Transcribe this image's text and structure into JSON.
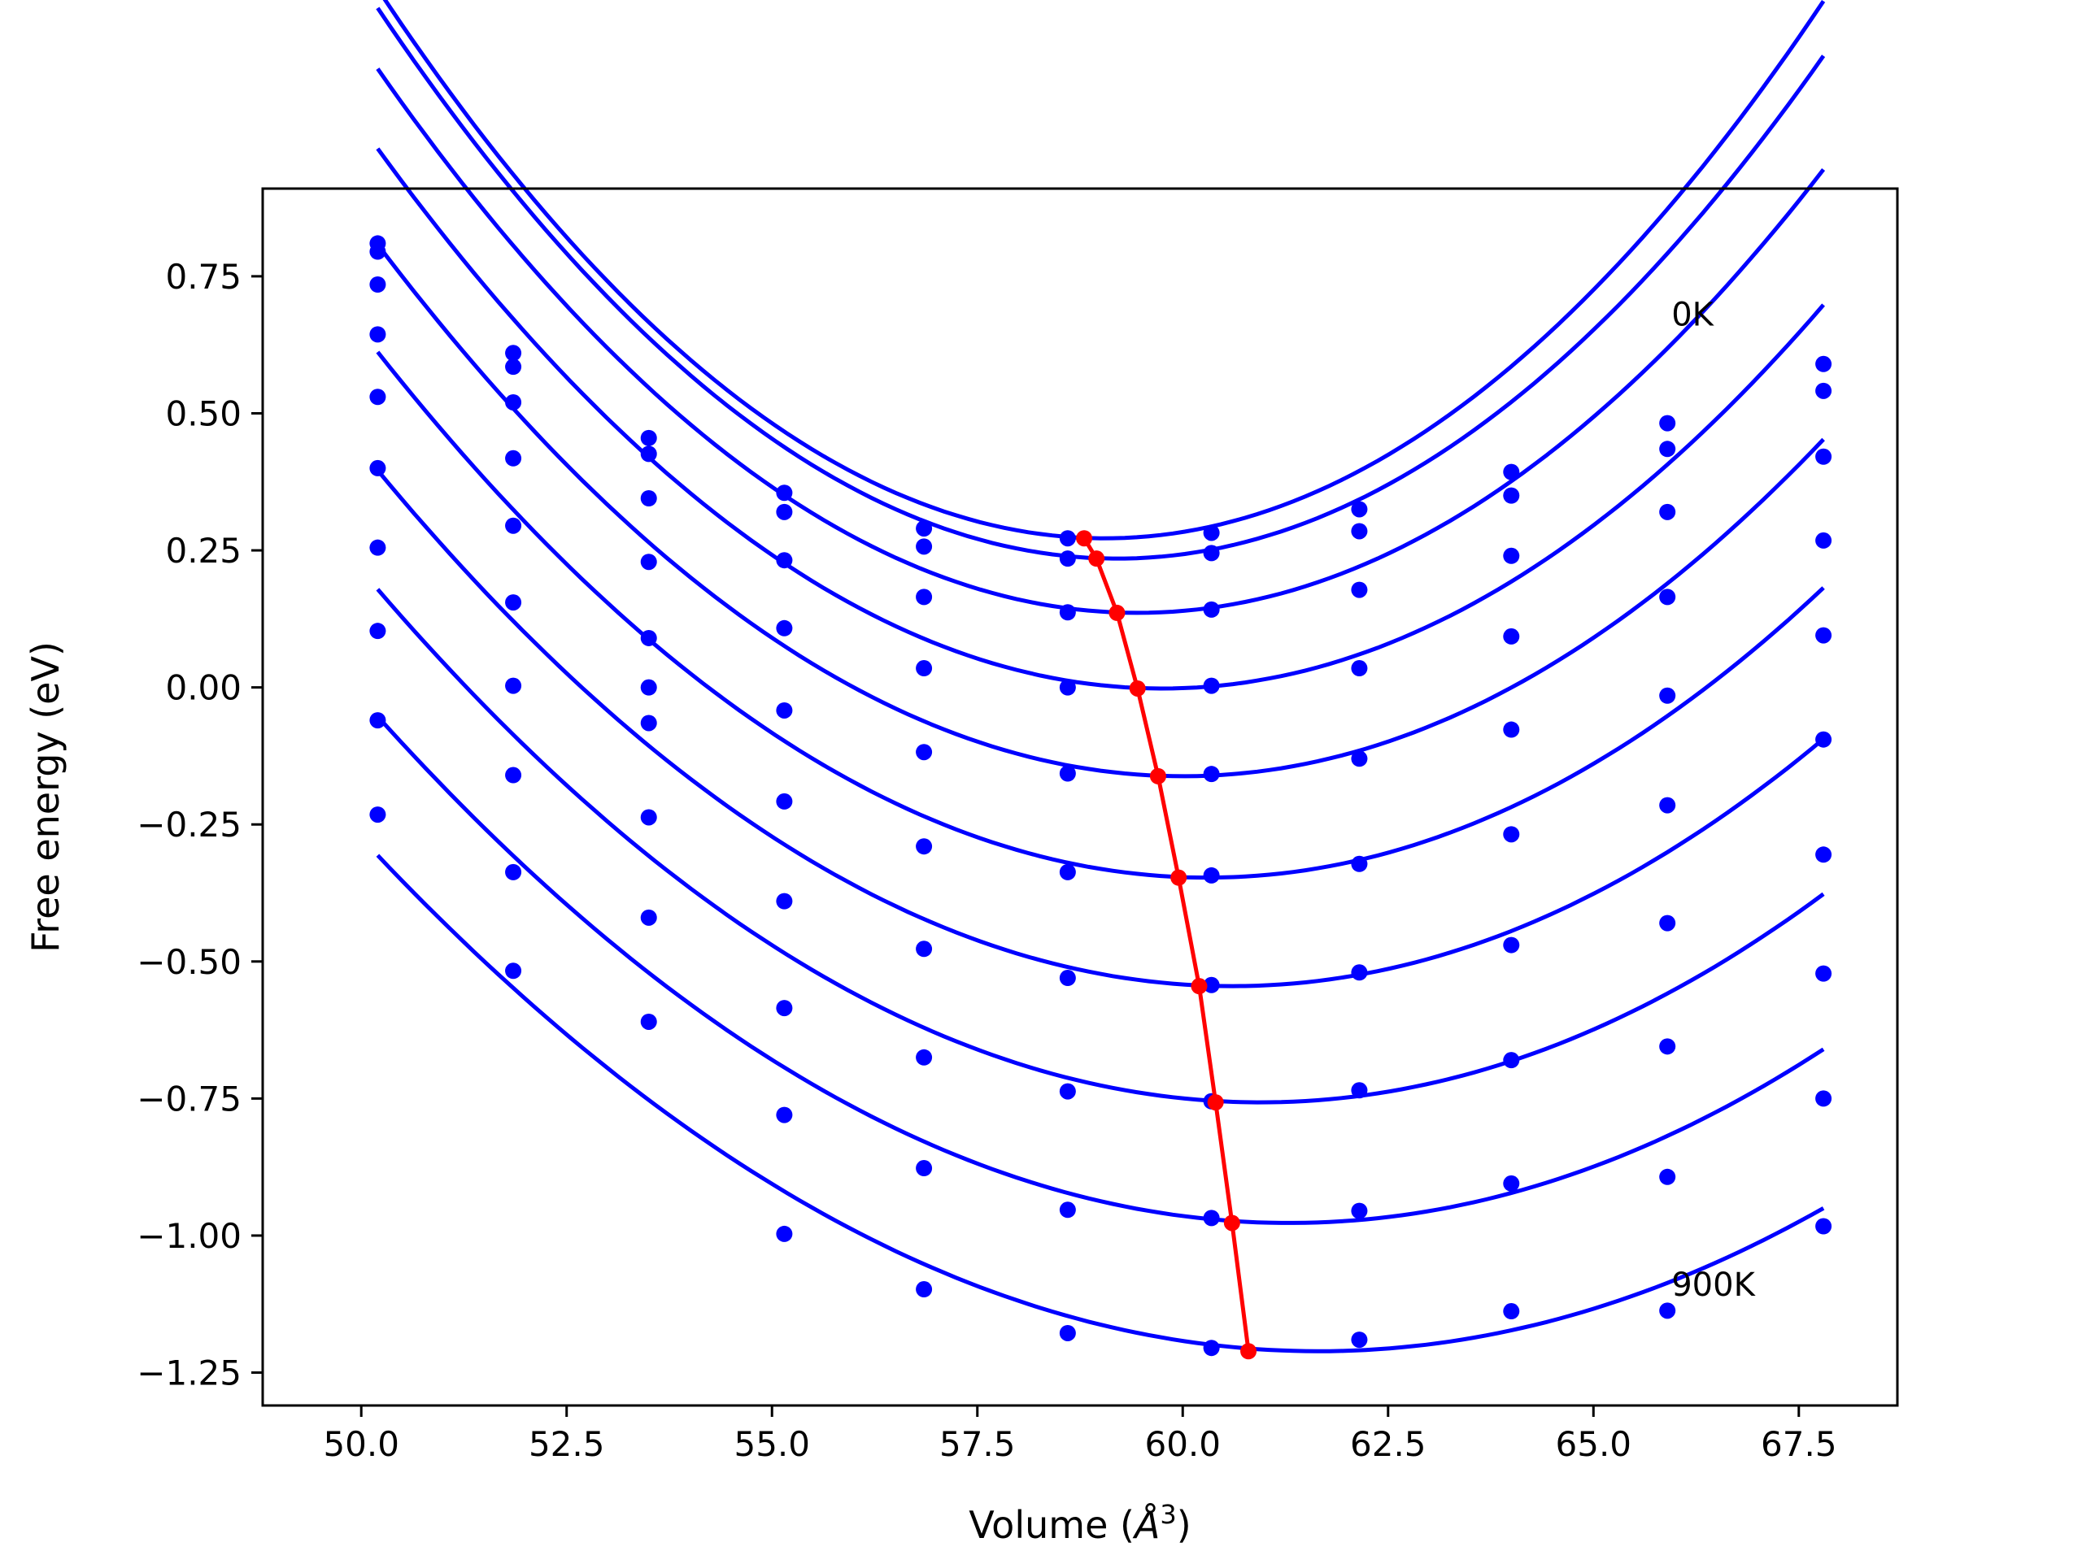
{
  "chart_data": {
    "type": "line",
    "title": "",
    "xlabel_prefix": "Volume (",
    "xlabel_symbol": "Å",
    "xlabel_exp": "3",
    "xlabel_suffix": ")",
    "ylabel": "Free energy (eV)",
    "xlim": [
      48.8,
      68.7
    ],
    "ylim": [
      -1.31,
      0.91
    ],
    "x_ticks": [
      50.0,
      52.5,
      55.0,
      57.5,
      60.0,
      62.5,
      65.0,
      67.5
    ],
    "x_tick_labels": [
      "50.0",
      "52.5",
      "55.0",
      "57.5",
      "60.0",
      "62.5",
      "65.0",
      "67.5"
    ],
    "y_ticks": [
      -1.25,
      -1.0,
      -0.75,
      -0.5,
      -0.25,
      0.0,
      0.25,
      0.5,
      0.75
    ],
    "y_tick_labels": [
      "−1.25",
      "−1.00",
      "−0.75",
      "−0.50",
      "−0.25",
      "0.00",
      "0.25",
      "0.50",
      "0.75"
    ],
    "grid": false,
    "legend": "none",
    "colors": {
      "curves": "#0000ff",
      "minima": "#ff0000"
    },
    "x": [
      50.2,
      51.85,
      53.5,
      55.15,
      56.85,
      58.6,
      60.35,
      62.15,
      64.0,
      65.9,
      67.8
    ],
    "series": [
      {
        "values": [
          0.81,
          0.61,
          0.455,
          0.355,
          0.29,
          0.272,
          0.282,
          0.325,
          0.393,
          0.482,
          0.59
        ],
        "fit": {
          "a": 0.0128,
          "v0": 59.05,
          "e0": 0.272
        }
      },
      {
        "values": [
          0.795,
          0.585,
          0.426,
          0.32,
          0.257,
          0.235,
          0.245,
          0.285,
          0.35,
          0.435,
          0.541
        ],
        "fit": {
          "a": 0.0124,
          "v0": 59.2,
          "e0": 0.235
        }
      },
      {
        "values": [
          0.735,
          0.52,
          0.345,
          0.232,
          0.165,
          0.137,
          0.142,
          0.178,
          0.24,
          0.32,
          0.421
        ],
        "fit": {
          "a": 0.0116,
          "v0": 59.45,
          "e0": 0.136
        }
      },
      {
        "values": [
          0.644,
          0.418,
          0.229,
          0.108,
          0.035,
          0.0,
          0.003,
          0.035,
          0.093,
          0.165,
          0.268
        ],
        "fit": {
          "a": 0.0108,
          "v0": 59.75,
          "e0": -0.002
        }
      },
      {
        "values": [
          0.53,
          0.295,
          0.09,
          -0.042,
          -0.118,
          -0.157,
          -0.158,
          -0.13,
          -0.077,
          -0.015,
          0.095
        ],
        "fit": {
          "a": 0.0101,
          "v0": 60.0,
          "e0": -0.162
        }
      },
      {
        "values": [
          0.4,
          0.155,
          0.0,
          -0.208,
          -0.29,
          -0.337,
          -0.343,
          -0.322,
          -0.268,
          -0.215,
          -0.095
        ],
        "fit": {
          "a": 0.0094,
          "v0": 60.3,
          "e0": -0.347
        }
      },
      {
        "values": [
          0.255,
          0.003,
          -0.065,
          -0.39,
          -0.477,
          -0.53,
          -0.543,
          -0.52,
          -0.47,
          -0.43,
          -0.305
        ],
        "fit": {
          "a": 0.0087,
          "v0": 60.6,
          "e0": -0.545
        }
      },
      {
        "values": [
          0.103,
          -0.16,
          -0.237,
          -0.585,
          -0.675,
          -0.737,
          -0.755,
          -0.735,
          -0.68,
          -0.655,
          -0.522
        ],
        "fit": {
          "a": 0.0081,
          "v0": 60.95,
          "e0": -0.757
        }
      },
      {
        "values": [
          -0.06,
          -0.337,
          -0.42,
          -0.78,
          -0.877,
          -0.953,
          -0.968,
          -0.955,
          -0.905,
          -0.893,
          -0.75
        ],
        "fit": {
          "a": 0.0075,
          "v0": 61.3,
          "e0": -0.977
        }
      },
      {
        "values": [
          -0.232,
          -0.517,
          -0.61,
          -0.997,
          -1.098,
          -1.178,
          -1.205,
          -1.19,
          -1.138,
          -1.137,
          -0.983
        ],
        "fit": {
          "a": 0.0069,
          "v0": 61.65,
          "e0": -1.211
        }
      }
    ],
    "minima": {
      "x": [
        58.8,
        58.95,
        59.2,
        59.45,
        59.7,
        59.95,
        60.2,
        60.4,
        60.6,
        60.8
      ],
      "y": [
        0.272,
        0.235,
        0.136,
        -0.002,
        -0.162,
        -0.347,
        -0.545,
        -0.757,
        -0.977,
        -1.211
      ]
    },
    "annotations": [
      {
        "text": "0K",
        "x": 65.95,
        "y": 0.66
      },
      {
        "text": "900K",
        "x": 65.95,
        "y": -1.11
      }
    ]
  }
}
